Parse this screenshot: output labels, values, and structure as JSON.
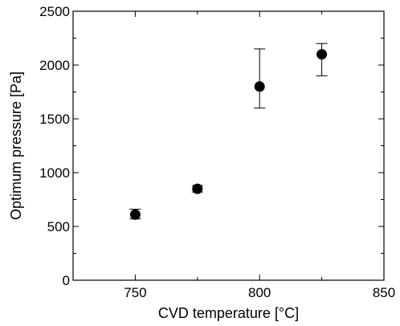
{
  "chart_data": {
    "type": "scatter",
    "title": "",
    "xlabel": "CVD temperature [°C]",
    "ylabel": "Optimum pressure [Pa]",
    "xlim": [
      725,
      850
    ],
    "ylim": [
      0,
      2500
    ],
    "x_ticks": [
      750,
      800,
      850
    ],
    "x_tick_labels": [
      "750",
      "800",
      "850"
    ],
    "x_minor_ticks": [
      775,
      825
    ],
    "y_ticks": [
      0,
      500,
      1000,
      1500,
      2000,
      2500
    ],
    "y_tick_labels": [
      "0",
      "500",
      "1000",
      "1500",
      "2000",
      "2500"
    ],
    "grid": false,
    "legend": "none",
    "series": [
      {
        "color": "#000000",
        "marker": "filled-circle",
        "points": [
          {
            "x": 750,
            "y": 610,
            "err_low": 570,
            "err_high": 660
          },
          {
            "x": 775,
            "y": 850,
            "err_low": 820,
            "err_high": 880
          },
          {
            "x": 800,
            "y": 1800,
            "err_low": 1600,
            "err_high": 2150
          },
          {
            "x": 825,
            "y": 2100,
            "err_low": 1900,
            "err_high": 2200
          }
        ]
      }
    ]
  }
}
